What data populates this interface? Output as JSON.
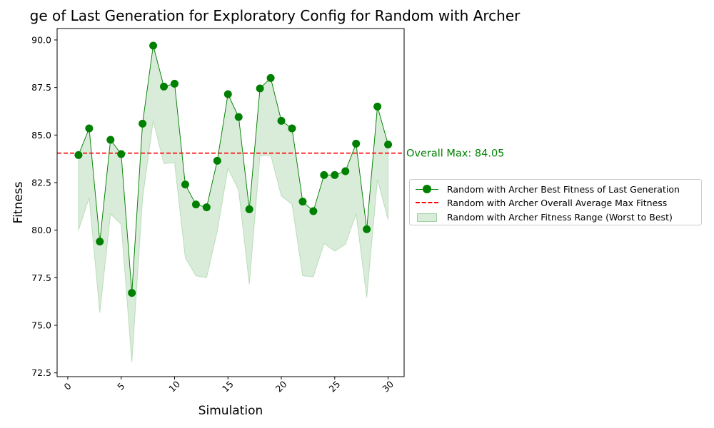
{
  "chart_data": {
    "type": "line",
    "title": "ge of Last Generation for Exploratory Config for Random with Archer",
    "xlabel": "Simulation",
    "ylabel": "Fitness",
    "xlim": [
      -1,
      31.5
    ],
    "ylim": [
      72.3,
      90.6
    ],
    "x_ticks": [
      0,
      5,
      10,
      15,
      20,
      25,
      30
    ],
    "y_ticks": [
      72.5,
      75.0,
      77.5,
      80.0,
      82.5,
      85.0,
      87.5,
      90.0
    ],
    "x_tick_labels": [
      "0",
      "5",
      "10",
      "15",
      "20",
      "25",
      "30"
    ],
    "y_tick_labels": [
      "72.5",
      "75.0",
      "77.5",
      "80.0",
      "82.5",
      "85.0",
      "87.5",
      "90.0"
    ],
    "x": [
      1,
      2,
      3,
      4,
      5,
      6,
      7,
      8,
      9,
      10,
      11,
      12,
      13,
      14,
      15,
      16,
      17,
      18,
      19,
      20,
      21,
      22,
      23,
      24,
      25,
      26,
      27,
      28,
      29,
      30
    ],
    "series": [
      {
        "name": "Random with Archer Best Fitness of Last Generation",
        "color": "#008000",
        "values": [
          83.95,
          85.35,
          79.4,
          84.75,
          84.0,
          76.7,
          85.6,
          89.7,
          87.55,
          87.7,
          82.4,
          81.35,
          81.2,
          83.65,
          87.15,
          85.95,
          81.1,
          87.45,
          88.0,
          85.75,
          85.35,
          81.5,
          81.0,
          82.9,
          82.9,
          83.1,
          84.55,
          80.05,
          86.5,
          84.5
        ]
      },
      {
        "name": "Random with Archer Fitness Range (Worst to Best)",
        "color": "#008000",
        "lower": [
          80.0,
          81.7,
          75.65,
          80.85,
          80.3,
          73.05,
          81.65,
          85.75,
          83.5,
          83.55,
          78.55,
          77.6,
          77.5,
          79.95,
          83.25,
          82.1,
          77.15,
          83.9,
          83.95,
          81.8,
          81.35,
          77.6,
          77.55,
          79.3,
          78.9,
          79.25,
          80.85,
          76.45,
          82.65,
          80.55
        ]
      }
    ],
    "reference_line": {
      "name": "Random with Archer Overall Average Max Fitness",
      "value": 84.05,
      "color": "#ff0000",
      "label": "Overall Max: 84.05"
    },
    "legend_position": "center-right-outside",
    "grid": false
  },
  "legend": {
    "items": [
      "Random with Archer Best Fitness of Last Generation",
      "Random with Archer Overall Average Max Fitness",
      "Random with Archer Fitness Range (Worst to Best)"
    ]
  }
}
